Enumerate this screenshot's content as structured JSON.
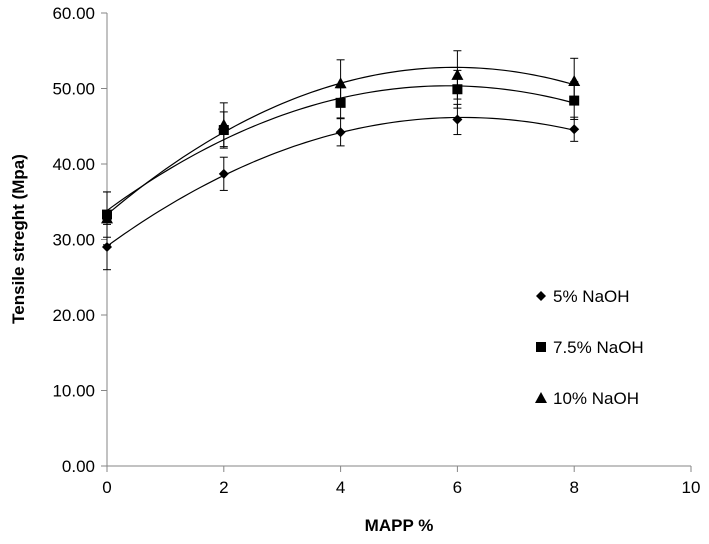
{
  "chart_data": {
    "type": "scatter",
    "title": "",
    "xlabel": "MAPP %",
    "ylabel": "Tensile streght (Mpa)",
    "xlim": [
      0,
      10
    ],
    "ylim": [
      0,
      60
    ],
    "x_ticks": [
      "0",
      "2",
      "4",
      "6",
      "8",
      "10"
    ],
    "y_ticks": [
      "0.00",
      "10.00",
      "20.00",
      "30.00",
      "40.00",
      "50.00",
      "60.00"
    ],
    "grid": false,
    "legend_position": "right",
    "trendline": "polynomial",
    "series": [
      {
        "name": "5% NaOH",
        "marker": "diamond",
        "x": [
          0,
          2,
          4,
          6,
          8
        ],
        "values": [
          29.0,
          38.7,
          44.2,
          45.9,
          44.6
        ],
        "error": [
          3.0,
          2.2,
          1.8,
          2.0,
          1.6
        ]
      },
      {
        "name": "7.5% NaOH",
        "marker": "square",
        "x": [
          0,
          2,
          4,
          6,
          8
        ],
        "values": [
          33.3,
          44.5,
          48.1,
          49.9,
          48.4
        ],
        "error": [
          3.0,
          2.4,
          2.0,
          2.5,
          2.5
        ]
      },
      {
        "name": "10% NaOH",
        "marker": "triangle",
        "x": [
          0,
          2,
          4,
          6,
          8
        ],
        "values": [
          32.8,
          45.2,
          50.7,
          51.8,
          51.0
        ],
        "error": [
          3.5,
          2.9,
          3.1,
          3.2,
          3.0
        ]
      }
    ],
    "colors": {
      "marker": "#000000",
      "axis": "#868686"
    }
  }
}
